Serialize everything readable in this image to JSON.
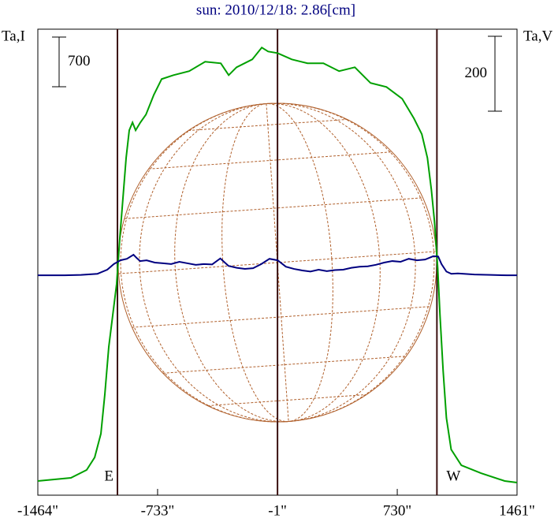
{
  "chart_data": {
    "type": "line",
    "title": "sun: 2010/12/18: 2.86[cm]",
    "y_label": "Ta,I",
    "y2_label": "Ta,V",
    "xlim": [
      -1464,
      1461
    ],
    "xticks": [
      {
        "value": -1464,
        "label": "-1464\""
      },
      {
        "value": -733,
        "label": "-733\""
      },
      {
        "value": -1,
        "label": "-1\""
      },
      {
        "value": 730,
        "label": "730\""
      },
      {
        "value": 1461,
        "label": "1461\""
      }
    ],
    "ylim": [
      0,
      6570
    ],
    "y2lim": [
      -587,
      657
    ],
    "series": [
      {
        "color": "#00a000",
        "x": [
          -1464,
          -1262,
          -1166,
          -1117,
          -1079,
          -1055,
          -1031,
          -1007,
          -983,
          -963,
          -944,
          -925,
          -906,
          -886,
          -867,
          -838,
          -804,
          -756,
          -708,
          -636,
          -540,
          -443,
          -347,
          -299,
          -251,
          -155,
          -97,
          -58,
          -1,
          86,
          182,
          279,
          375,
          471,
          519,
          567,
          664,
          760,
          832,
          880,
          914,
          938,
          957,
          977,
          991,
          1010,
          1030,
          1059,
          1121,
          1241,
          1386,
          1461
        ],
        "values": [
          200,
          244,
          356,
          533,
          867,
          1422,
          2089,
          2533,
          2978,
          3644,
          4200,
          4756,
          5144,
          5255,
          5144,
          5255,
          5366,
          5644,
          5867,
          5922,
          5978,
          6111,
          6089,
          5922,
          6033,
          6144,
          6311,
          6255,
          6233,
          6144,
          6089,
          6089,
          5978,
          6033,
          5922,
          5811,
          5755,
          5589,
          5311,
          5089,
          4756,
          4311,
          3866,
          3200,
          2533,
          1755,
          1089,
          644,
          422,
          311,
          200,
          178
        ]
      },
      {
        "color": "#000080",
        "axis": "y2",
        "x": [
          -1464,
          -1300,
          -1200,
          -1100,
          -1040,
          -1000,
          -960,
          -920,
          -880,
          -860,
          -840,
          -800,
          -750,
          -700,
          -650,
          -600,
          -550,
          -500,
          -450,
          -400,
          -350,
          -300,
          -250,
          -200,
          -150,
          -100,
          -50,
          0,
          50,
          100,
          150,
          200,
          250,
          300,
          350,
          400,
          450,
          500,
          550,
          600,
          650,
          700,
          750,
          800,
          850,
          900,
          950,
          980,
          1000,
          1030,
          1060,
          1100,
          1200,
          1300,
          1400,
          1461
        ],
        "values": [
          0,
          0,
          1,
          4,
          15,
          30,
          40,
          44,
          55,
          46,
          38,
          40,
          34,
          32,
          30,
          36,
          32,
          28,
          30,
          29,
          45,
          25,
          20,
          17,
          19,
          30,
          44,
          40,
          23,
          17,
          13,
          10,
          15,
          11,
          14,
          15,
          20,
          23,
          24,
          28,
          34,
          38,
          36,
          44,
          40,
          42,
          51,
          50,
          30,
          10,
          4,
          5,
          2,
          1,
          0,
          0
        ]
      }
    ],
    "limb_lines": {
      "x": [
        -978,
        -1,
        972
      ],
      "labels": [
        "E",
        null,
        "W"
      ],
      "color": "#3a1010"
    },
    "scale_bars": [
      {
        "value": 700
      },
      {
        "value": 200,
        "axis": "y2"
      }
    ]
  }
}
